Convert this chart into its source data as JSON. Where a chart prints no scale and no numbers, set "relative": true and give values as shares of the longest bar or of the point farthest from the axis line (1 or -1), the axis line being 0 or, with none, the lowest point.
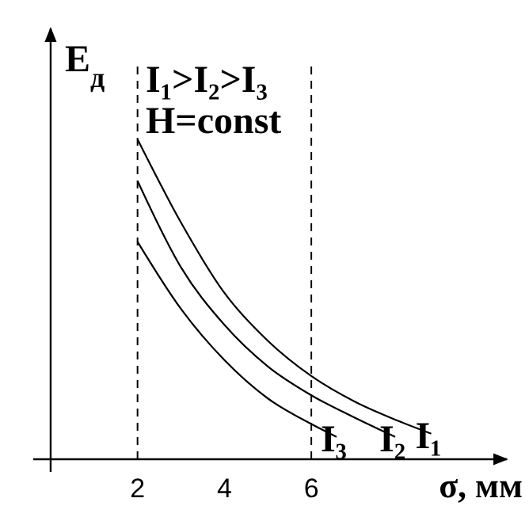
{
  "chart_data": {
    "type": "line",
    "relative": true,
    "xlabel": "σ, мм",
    "ylabel": "E$_{д}$",
    "xlim": [
      -0.4,
      10.5
    ],
    "xticks": [
      2,
      4,
      6
    ],
    "annotations": [
      "I₁>I₂>I₃",
      "H=const"
    ],
    "ref_lines": [
      {
        "axis": "x",
        "value": 2,
        "line_style": "dashed",
        "color": "#000000"
      },
      {
        "axis": "x",
        "value": 6,
        "line_style": "dashed",
        "color": "#000000"
      }
    ],
    "marker": "none",
    "line_style": "solid",
    "series": [
      {
        "name": "I₁",
        "color": "#000000",
        "x": [
          2,
          3,
          4,
          5,
          6,
          7,
          8,
          8.76
        ],
        "values": [
          1,
          0.74,
          0.52,
          0.37,
          0.26,
          0.18,
          0.12,
          0.08
        ]
      },
      {
        "name": "I₂",
        "color": "#000000",
        "x": [
          2,
          3,
          4,
          5,
          6,
          7,
          7.93
        ],
        "values": [
          0.87,
          0.6,
          0.42,
          0.29,
          0.2,
          0.13,
          0.07
        ]
      },
      {
        "name": "I₃",
        "color": "#000000",
        "x": [
          2,
          3,
          4,
          5,
          6,
          6.58
        ],
        "values": [
          0.68,
          0.47,
          0.31,
          0.19,
          0.11,
          0.07
        ]
      }
    ]
  }
}
